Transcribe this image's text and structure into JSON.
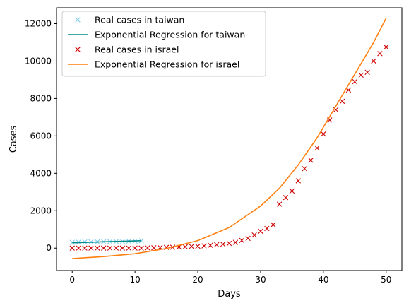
{
  "chart_data": {
    "type": "scatter",
    "xlabel": "Days",
    "ylabel": "Cases",
    "xlim": [
      -2.5,
      52.5
    ],
    "ylim": [
      -1200,
      12850
    ],
    "x_ticks": [
      0,
      10,
      20,
      30,
      40,
      50
    ],
    "y_ticks": [
      0,
      2000,
      4000,
      6000,
      8000,
      10000,
      12000
    ],
    "grid": false,
    "legend_position": "top-left",
    "series": [
      {
        "name": "Real cases in taiwan",
        "kind": "scatter",
        "marker": "x",
        "color": "#87ceeb",
        "x": [
          0,
          1,
          2,
          3,
          4,
          5,
          6,
          7,
          8,
          9,
          10,
          11
        ],
        "y": [
          310,
          320,
          325,
          330,
          335,
          340,
          345,
          350,
          355,
          365,
          375,
          385
        ]
      },
      {
        "name": "Exponential Regression for taiwan",
        "kind": "line",
        "color": "#008b8b",
        "x": [
          0,
          1,
          2,
          3,
          4,
          5,
          6,
          7,
          8,
          9,
          10,
          11
        ],
        "y": [
          285,
          295,
          305,
          315,
          325,
          335,
          345,
          355,
          365,
          375,
          385,
          395
        ]
      },
      {
        "name": "Real cases in israel",
        "kind": "scatter",
        "marker": "x",
        "color": "#cc0000",
        "x": [
          0,
          1,
          2,
          3,
          4,
          5,
          6,
          7,
          8,
          9,
          10,
          11,
          12,
          13,
          14,
          15,
          16,
          17,
          18,
          19,
          20,
          21,
          22,
          23,
          24,
          25,
          26,
          27,
          28,
          29,
          30,
          31,
          32,
          33,
          34,
          35,
          36,
          37,
          38,
          39,
          40,
          41,
          42,
          43,
          44,
          45,
          46,
          47,
          48,
          49,
          50
        ],
        "y": [
          0,
          0,
          0,
          0,
          0,
          0,
          0,
          0,
          0,
          0,
          0,
          0,
          10,
          20,
          30,
          40,
          50,
          60,
          70,
          90,
          100,
          120,
          150,
          180,
          210,
          250,
          310,
          410,
          520,
          700,
          900,
          1050,
          1250,
          2350,
          2700,
          3050,
          3600,
          4250,
          4700,
          5350,
          6100,
          6850,
          7400,
          7850,
          8450,
          8900,
          9250,
          9400,
          10000,
          10400,
          10750
        ]
      },
      {
        "name": "Exponential Regression for israel",
        "kind": "line",
        "color": "#ff7f0e",
        "x": [
          0,
          5,
          10,
          15,
          20,
          25,
          30,
          33,
          36,
          39,
          42,
          45,
          48,
          50
        ],
        "y": [
          -560,
          -450,
          -300,
          -20,
          400,
          1100,
          2250,
          3200,
          4450,
          5900,
          7600,
          9300,
          11000,
          12300
        ]
      }
    ]
  }
}
